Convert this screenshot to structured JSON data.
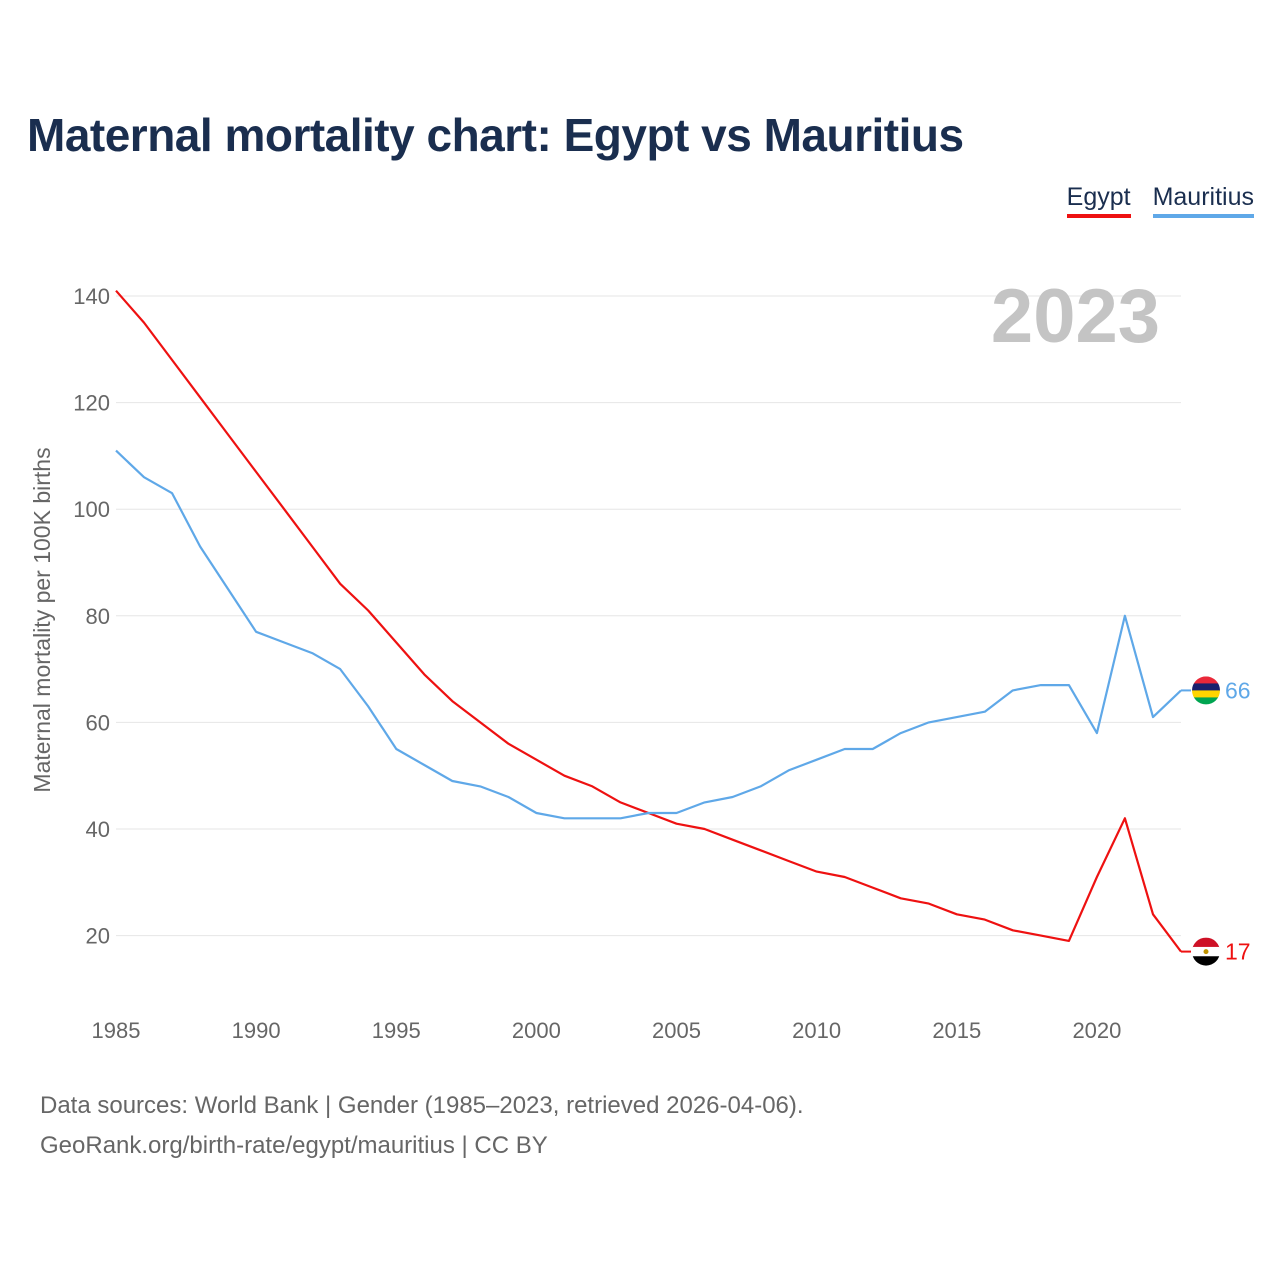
{
  "title": "Maternal mortality chart: Egypt vs Mauritius",
  "legend": {
    "egypt": "Egypt",
    "mauritius": "Mauritius"
  },
  "source": {
    "line1": "Data sources: World Bank | Gender (1985–2023, retrieved 2026-04-06).",
    "line2": "GeoRank.org/birth-rate/egypt/mauritius | CC BY"
  },
  "chart_data": {
    "type": "line",
    "title": "Maternal mortality chart: Egypt vs Mauritius",
    "ylabel": "Maternal mortality per 100K births",
    "xlabel": "",
    "year_label": "2023",
    "xlim": [
      1985,
      2023
    ],
    "ylim": [
      10,
      142
    ],
    "x_ticks": [
      1985,
      1990,
      1995,
      2000,
      2005,
      2010,
      2015,
      2020
    ],
    "y_ticks": [
      20,
      40,
      60,
      80,
      100,
      120,
      140
    ],
    "grid": true,
    "legend_position": "top-right",
    "x": [
      1985,
      1986,
      1987,
      1988,
      1989,
      1990,
      1991,
      1992,
      1993,
      1994,
      1995,
      1996,
      1997,
      1998,
      1999,
      2000,
      2001,
      2002,
      2003,
      2004,
      2005,
      2006,
      2007,
      2008,
      2009,
      2010,
      2011,
      2012,
      2013,
      2014,
      2015,
      2016,
      2017,
      2018,
      2019,
      2020,
      2021,
      2022,
      2023
    ],
    "series": [
      {
        "name": "Egypt",
        "color": "#ee1111",
        "end_label": "17",
        "values": [
          141,
          135,
          128,
          121,
          114,
          107,
          100,
          93,
          86,
          81,
          75,
          69,
          64,
          60,
          56,
          53,
          50,
          48,
          45,
          43,
          41,
          40,
          38,
          36,
          34,
          32,
          31,
          29,
          27,
          26,
          24,
          23,
          21,
          20,
          19,
          31,
          42,
          24,
          17
        ]
      },
      {
        "name": "Mauritius",
        "color": "#5fa8e8",
        "end_label": "66",
        "values": [
          111,
          106,
          103,
          93,
          85,
          77,
          75,
          73,
          70,
          63,
          55,
          52,
          49,
          48,
          46,
          43,
          42,
          42,
          42,
          43,
          43,
          45,
          46,
          48,
          51,
          53,
          55,
          55,
          58,
          60,
          61,
          62,
          66,
          67,
          67,
          58,
          80,
          61,
          66
        ]
      }
    ]
  }
}
